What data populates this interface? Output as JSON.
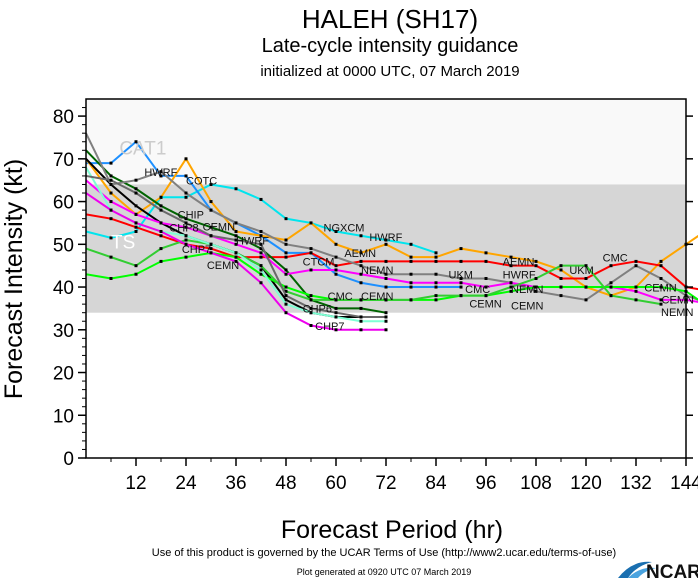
{
  "chart_data": {
    "type": "line",
    "title": "HALEH (SH17)",
    "subtitle": "Late-cycle intensity guidance",
    "subtitle2": "initialized at 0000 UTC, 07 March 2019",
    "xlabel": "Forecast Period (hr)",
    "ylabel": "Forecast Intensity (kt)",
    "xlim": [
      0,
      144
    ],
    "ylim": [
      0,
      84
    ],
    "xticks": [
      12,
      24,
      36,
      48,
      60,
      72,
      84,
      96,
      108,
      120,
      132,
      144
    ],
    "yticks": [
      0,
      10,
      20,
      30,
      40,
      50,
      60,
      70,
      80
    ],
    "x_step_hr": 6,
    "bands": [
      {
        "from": 64,
        "to": 84,
        "color": "#f9f9f9",
        "label": "CAT1"
      },
      {
        "from": 34,
        "to": 64,
        "color": "#d6d6d6",
        "label": "TS"
      }
    ],
    "series": [
      {
        "color": "#00e5ee",
        "values": [
          53,
          51.5,
          53,
          61,
          61,
          64,
          63,
          60.5,
          56,
          55,
          53,
          52,
          51,
          50,
          48
        ]
      },
      {
        "color": "#1e90ff",
        "values": [
          69,
          69,
          74,
          66,
          66,
          58,
          55,
          52,
          48,
          48,
          43,
          41,
          40,
          40,
          40,
          40
        ]
      },
      {
        "color": "#ffa500",
        "values": [
          70,
          62,
          57,
          61,
          70,
          60,
          53,
          52,
          51,
          55,
          50,
          48,
          50,
          47,
          47,
          49,
          48,
          47,
          46,
          44,
          40,
          38,
          40,
          46,
          50,
          54,
          52,
          48
        ]
      },
      {
        "color": "#ff0000",
        "values": [
          57,
          56,
          54,
          52,
          50,
          49,
          47,
          47,
          47,
          48,
          45,
          46,
          46,
          46,
          46,
          46,
          46,
          45,
          45,
          42,
          42,
          45,
          46,
          45,
          40,
          39,
          38
        ]
      },
      {
        "color": "#000000",
        "values": [
          70,
          64,
          59,
          55,
          52,
          50,
          48,
          45,
          37,
          34,
          33,
          33,
          33
        ]
      },
      {
        "color": "#006400",
        "values": [
          72,
          66,
          63,
          59,
          56,
          54,
          52,
          49,
          44,
          37,
          35,
          35,
          34
        ]
      },
      {
        "color": "#808080",
        "values": [
          76,
          64,
          65,
          67,
          62,
          58,
          55,
          53,
          50,
          49,
          47,
          45,
          43,
          43,
          43,
          42,
          42,
          41,
          39,
          38,
          37,
          41,
          45,
          42,
          38,
          36
        ]
      },
      {
        "color": "#ff00ff",
        "values": [
          65,
          60,
          57,
          55,
          54,
          52,
          50,
          48,
          43,
          44,
          44,
          43,
          42,
          41,
          41,
          41,
          40,
          41,
          40,
          40,
          40,
          40,
          39,
          37,
          37,
          36
        ]
      },
      {
        "color": "#00ff00",
        "values": [
          43,
          42,
          43,
          46,
          47,
          48,
          47,
          43,
          40,
          38,
          37,
          37,
          37,
          37,
          37,
          38,
          38,
          39,
          40,
          40,
          40,
          40,
          40,
          40,
          39,
          35
        ]
      },
      {
        "color": "#32cd32",
        "values": [
          49,
          47,
          45,
          49,
          51,
          50,
          48,
          45,
          39,
          37,
          37,
          37,
          37,
          37,
          38,
          38,
          38,
          40,
          42,
          45,
          45,
          38,
          37,
          36
        ]
      },
      {
        "color": "#7fffd4",
        "values": [
          68,
          58,
          55,
          53,
          52,
          50,
          48,
          44,
          36,
          34,
          33,
          32,
          32
        ]
      },
      {
        "color": "#ee00ee",
        "values": [
          62,
          58,
          55,
          53,
          50,
          48,
          46,
          41,
          34,
          31,
          30,
          30,
          30
        ]
      },
      {
        "color": "#696969",
        "values": [
          66,
          65,
          62,
          58,
          55,
          52,
          51,
          50,
          38,
          35,
          34,
          33,
          33
        ]
      }
    ],
    "annotations": [
      {
        "text": "CAT1",
        "x": 8,
        "y": 71,
        "color": "#cccccc"
      },
      {
        "text": "TS",
        "x": 6,
        "y": 49,
        "color": "#ffffff"
      },
      {
        "text": "HWRF",
        "x": 14,
        "y": 66
      },
      {
        "text": "COTC",
        "x": 24,
        "y": 64
      },
      {
        "text": "CHIP",
        "x": 22,
        "y": 56
      },
      {
        "text": "CEMN",
        "x": 28,
        "y": 56
      },
      {
        "text": "CHP8",
        "x": 20,
        "y": 53
      },
      {
        "text": "CHP7",
        "x": 23,
        "y": 48
      },
      {
        "text": "CEMN",
        "x": 29,
        "y": 47
      },
      {
        "text": "HWRF",
        "x": 36,
        "y": 50
      },
      {
        "text": "NGXCM",
        "x": 57,
        "y": 53
      },
      {
        "text": "AEMN",
        "x": 62,
        "y": 47
      },
      {
        "text": "HWRF",
        "x": 68,
        "y": 48
      },
      {
        "text": "CTCM",
        "x": 52,
        "y": 45
      },
      {
        "text": "NEMN",
        "x": 66,
        "y": 43
      },
      {
        "text": "CMC",
        "x": 58,
        "y": 37
      },
      {
        "text": "CEMN",
        "x": 66,
        "y": 37
      },
      {
        "text": "CHP6",
        "x": 52,
        "y": 34
      },
      {
        "text": "CHP7",
        "x": 55,
        "y": 30
      },
      {
        "text": "UKM",
        "x": 87,
        "y": 42
      },
      {
        "text": "CMC",
        "x": 91,
        "y": 40
      },
      {
        "text": "CEMN",
        "x": 92,
        "y": 38
      },
      {
        "text": "AEMN",
        "x": 100,
        "y": 45
      },
      {
        "text": "HWRF",
        "x": 100,
        "y": 42
      },
      {
        "text": "NEMN",
        "x": 102,
        "y": 40
      },
      {
        "text": "CEMN",
        "x": 102,
        "y": 39
      },
      {
        "text": "UKM",
        "x": 116,
        "y": 43
      },
      {
        "text": "CMC",
        "x": 124,
        "y": 46
      },
      {
        "text": "CEMN",
        "x": 134,
        "y": 39
      },
      {
        "text": "CEMN",
        "x": 141,
        "y": 39
      },
      {
        "text": "NEMN",
        "x": 138,
        "y": 36
      }
    ]
  },
  "footer": {
    "terms": "Use of this product is governed by the UCAR Terms of Use (http://www2.ucar.edu/terms-of-use)",
    "generated": "Plot generated at 0920 UTC   07 March 2019",
    "logo": "NCAR"
  }
}
